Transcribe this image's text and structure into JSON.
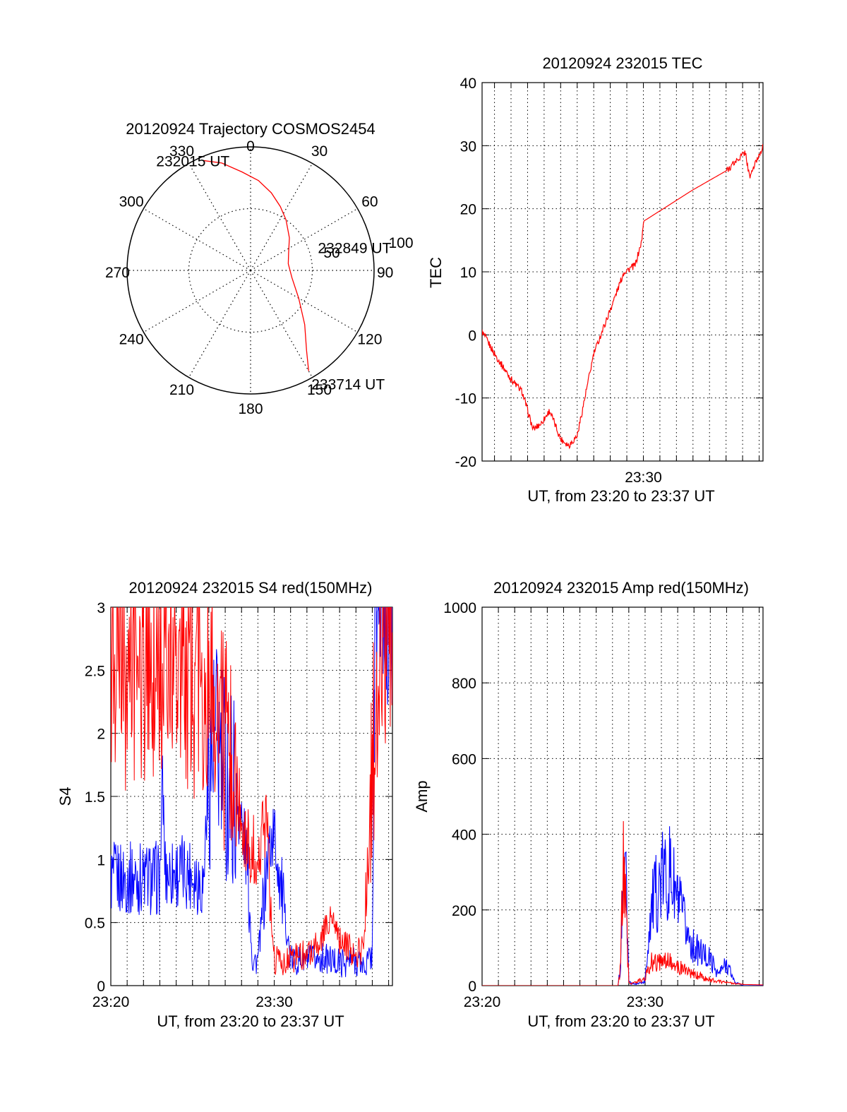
{
  "chart_data": [
    {
      "type": "polar",
      "title": "20120924 Trajectory COSMOS2454",
      "angle_ticks": [
        "0",
        "30",
        "60",
        "90",
        "120",
        "150",
        "180",
        "210",
        "240",
        "270",
        "300",
        "330"
      ],
      "radial_ticks": [
        "50",
        "100"
      ],
      "rlim": [
        0,
        100
      ],
      "grid": true,
      "series": [
        {
          "color": "#ff0000",
          "azimuth": [
            336.5,
            345,
            355,
            5,
            15,
            25,
            35,
            50,
            65,
            80,
            100,
            120,
            135,
            145,
            150
          ],
          "radius": [
            97,
            90,
            80,
            73,
            65,
            57,
            50,
            41,
            34,
            31,
            34,
            45,
            62,
            79,
            94
          ]
        }
      ],
      "annotations": [
        {
          "text": "232015 UT",
          "azimuth": 336.5,
          "radius": 97
        },
        {
          "text": "232849 UT",
          "azimuth": 80,
          "radius": 31
        },
        {
          "text": "233714 UT",
          "azimuth": 150,
          "radius": 94
        }
      ]
    },
    {
      "type": "line",
      "title": "20120924 232015 TEC",
      "xlabel": "UT, from 23:20 to 23:37 UT",
      "ylabel": "TEC",
      "xlim": [
        "23:20:15",
        "23:37:14"
      ],
      "ylim": [
        -20,
        40
      ],
      "yticks": [
        "-20",
        "-10",
        "0",
        "10",
        "20",
        "30",
        "40"
      ],
      "xticks": [
        "23:30"
      ],
      "grid": true,
      "series": [
        {
          "color": "#ff0000",
          "x": [
            "23:20:15",
            "23:21:00",
            "23:22:00",
            "23:22:40",
            "23:23:20",
            "23:23:50",
            "23:24:20",
            "23:25:00",
            "23:25:30",
            "23:26:00",
            "23:27:00",
            "23:28:00",
            "23:28:50",
            "23:29:30",
            "23:29:55",
            "23:30:00",
            "23:33:00",
            "23:35:00",
            "23:36:10",
            "23:36:25",
            "23:37:14"
          ],
          "y": [
            0.5,
            -3,
            -7,
            -9,
            -15,
            -14,
            -12,
            -16.5,
            -17.5,
            -16,
            -3,
            4,
            10,
            11,
            15,
            18,
            23,
            26,
            29,
            25,
            30
          ]
        }
      ]
    },
    {
      "type": "line",
      "title": "20120924 232015 S4 red(150MHz)",
      "xlabel": "UT, from 23:20 to 23:37 UT",
      "ylabel": "S4",
      "xlim": [
        "23:20:00",
        "23:37:14"
      ],
      "ylim": [
        0,
        3
      ],
      "yticks": [
        "0",
        "0.5",
        "1",
        "1.5",
        "2",
        "2.5",
        "3"
      ],
      "xticks": [
        "23:20",
        "23:30"
      ],
      "grid": true,
      "series": [
        {
          "color": "#0000ff",
          "x": [
            "23:20:00",
            "23:22:00",
            "23:23:00",
            "23:23:10",
            "23:23:20",
            "23:25:00",
            "23:25:40",
            "23:26:00",
            "23:26:30",
            "23:27:00",
            "23:27:30",
            "23:28:00",
            "23:28:20",
            "23:28:40",
            "23:29:00",
            "23:29:40",
            "23:30:00",
            "23:31:00",
            "23:32:00",
            "23:33:00",
            "23:34:00",
            "23:35:00",
            "23:35:30",
            "23:36:00",
            "23:36:10",
            "23:37:14"
          ],
          "y": [
            0.85,
            0.85,
            0.85,
            1.6,
            0.9,
            0.9,
            0.8,
            1.8,
            1.9,
            1.6,
            1.6,
            1.3,
            1.0,
            0.2,
            0.2,
            1.1,
            1.2,
            0.2,
            0.2,
            0.22,
            0.18,
            0.2,
            0.15,
            0.25,
            3,
            3
          ]
        },
        {
          "color": "#ff0000",
          "x": [
            "23:20:00",
            "23:21:00",
            "23:22:00",
            "23:23:00",
            "23:24:00",
            "23:25:00",
            "23:26:00",
            "23:27:00",
            "23:27:40",
            "23:28:10",
            "23:28:30",
            "23:29:00",
            "23:29:30",
            "23:30:00",
            "23:31:00",
            "23:32:00",
            "23:33:00",
            "23:33:30",
            "23:34:00",
            "23:35:00",
            "23:35:30",
            "23:36:00",
            "23:36:30",
            "23:37:14"
          ],
          "y": [
            2.6,
            2.4,
            2.5,
            2.4,
            2.6,
            2.3,
            2.5,
            1.9,
            1.6,
            1.2,
            1.1,
            1.0,
            1.3,
            0.2,
            0.2,
            0.25,
            0.4,
            0.55,
            0.35,
            0.25,
            0.3,
            1.8,
            2.8,
            2.8
          ]
        }
      ]
    },
    {
      "type": "line",
      "title": "20120924 232015 Amp red(150MHz)",
      "xlabel": "UT, from 23:20 to 23:37 UT",
      "ylabel": "Amp",
      "xlim": [
        "23:20:00",
        "23:37:14"
      ],
      "ylim": [
        0,
        1000
      ],
      "yticks": [
        "0",
        "200",
        "400",
        "600",
        "800",
        "1000"
      ],
      "xticks": [
        "23:20",
        "23:30"
      ],
      "grid": true,
      "series": [
        {
          "color": "#0000ff",
          "x": [
            "23:20:00",
            "23:28:20",
            "23:28:30",
            "23:28:40",
            "23:28:50",
            "23:29:00",
            "23:29:10",
            "23:29:30",
            "23:30:00",
            "23:30:20",
            "23:31:00",
            "23:31:30",
            "23:32:00",
            "23:32:30",
            "23:33:00",
            "23:34:00",
            "23:34:30",
            "23:35:00",
            "23:35:30",
            "23:36:00",
            "23:37:14"
          ],
          "y": [
            0,
            0,
            50,
            420,
            300,
            10,
            5,
            5,
            10,
            200,
            280,
            300,
            220,
            150,
            100,
            70,
            30,
            60,
            10,
            0,
            0
          ]
        },
        {
          "color": "#ff0000",
          "x": [
            "23:20:00",
            "23:28:20",
            "23:28:30",
            "23:28:40",
            "23:28:50",
            "23:29:00",
            "23:29:10",
            "23:29:30",
            "23:30:00",
            "23:30:20",
            "23:31:00",
            "23:32:00",
            "23:33:00",
            "23:34:00",
            "23:35:00",
            "23:36:00",
            "23:37:14"
          ],
          "y": [
            0,
            0,
            50,
            380,
            200,
            10,
            5,
            10,
            20,
            60,
            70,
            50,
            30,
            15,
            8,
            3,
            2
          ]
        }
      ]
    }
  ]
}
